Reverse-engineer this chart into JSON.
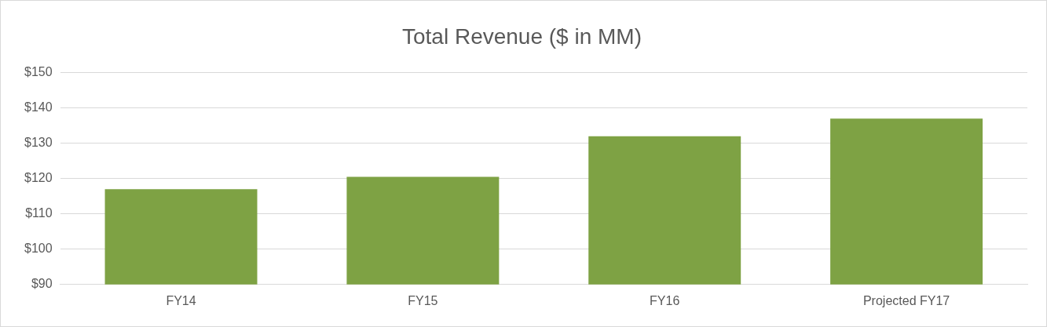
{
  "chart_data": {
    "type": "bar",
    "title": "Total Revenue ($ in MM)",
    "categories": [
      "FY14",
      "FY15",
      "FY16",
      "Projected FY17"
    ],
    "values": [
      117,
      120.5,
      132,
      137
    ],
    "color": "#7ea244",
    "ylim": [
      90,
      150
    ],
    "yticks": [
      {
        "value": 90,
        "label": "$90"
      },
      {
        "value": 100,
        "label": "$100"
      },
      {
        "value": 110,
        "label": "$110"
      },
      {
        "value": 120,
        "label": "$120"
      },
      {
        "value": 130,
        "label": "$130"
      },
      {
        "value": 140,
        "label": "$140"
      },
      {
        "value": 150,
        "label": "$150"
      }
    ],
    "grid": "y"
  }
}
